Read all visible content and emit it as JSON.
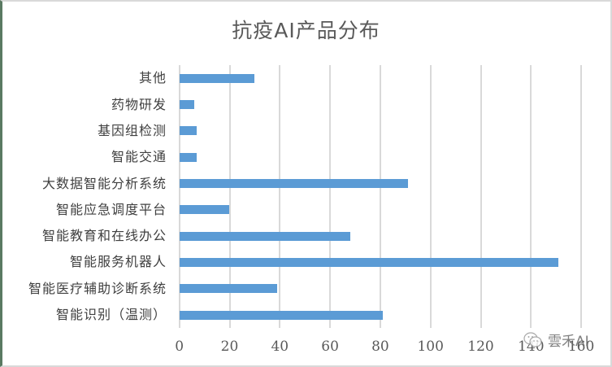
{
  "chart_data": {
    "type": "bar",
    "orientation": "horizontal",
    "title": "抗疫AI产品分布",
    "xlabel": "",
    "ylabel": "",
    "xlim": [
      0,
      160
    ],
    "xticks": [
      "0",
      "20",
      "40",
      "60",
      "80",
      "100",
      "120",
      "140",
      "160"
    ],
    "grid": true,
    "legend": null,
    "bar_color": "#5b9bd5",
    "categories": [
      "其他",
      "药物研发",
      "基因组检测",
      "智能交通",
      "大数据智能分析系统",
      "智能应急调度平台",
      "智能教育和在线办公",
      "智能服务机器人",
      "智能医疗辅助诊断系统",
      "智能识别（温测）"
    ],
    "values": [
      30,
      6,
      7,
      7,
      91,
      20,
      68,
      151,
      39,
      81
    ]
  },
  "watermark": {
    "icon": "wechat-icon",
    "text": "雲禾AI"
  }
}
